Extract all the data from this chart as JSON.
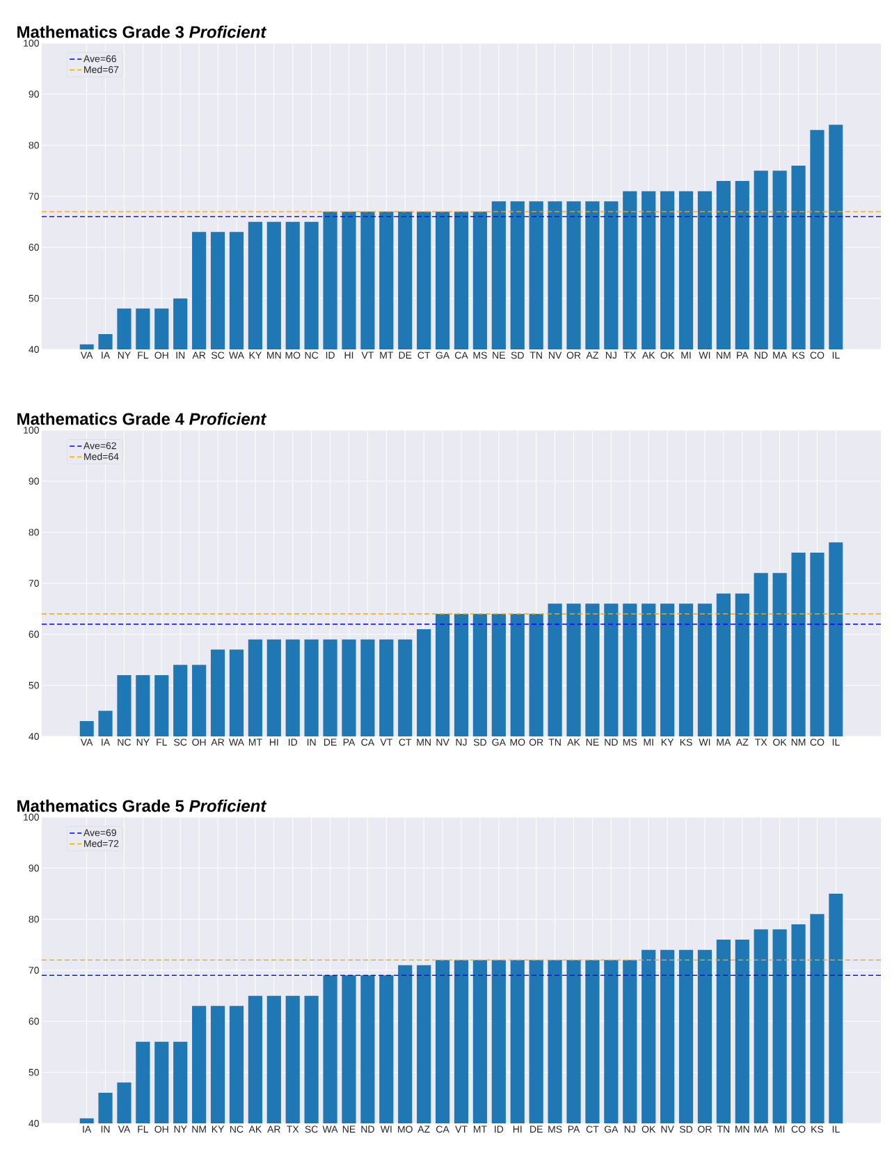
{
  "chart_data": [
    {
      "type": "bar",
      "title": "Mathematics Grade 3 *Proficient*",
      "color": "#1f77b4",
      "grid": true,
      "legend": "top left",
      "ylim": [
        40,
        100
      ],
      "yticks": [
        40,
        50,
        60,
        70,
        80,
        90,
        100
      ],
      "categories": [
        "VA",
        "IA",
        "NY",
        "FL",
        "OH",
        "IN",
        "AR",
        "SC",
        "WA",
        "KY",
        "MN",
        "MO",
        "NC",
        "ID",
        "HI",
        "VT",
        "MT",
        "DE",
        "CT",
        "GA",
        "CA",
        "MS",
        "NE",
        "SD",
        "TN",
        "NV",
        "OR",
        "AZ",
        "NJ",
        "TX",
        "AK",
        "OK",
        "MI",
        "WI",
        "NM",
        "PA",
        "ND",
        "MA",
        "KS",
        "CO",
        "IL"
      ],
      "values": [
        41,
        43,
        48,
        48,
        48,
        50,
        63,
        63,
        63,
        65,
        65,
        65,
        65,
        67,
        67,
        67,
        67,
        67,
        67,
        67,
        67,
        67,
        69,
        69,
        69,
        69,
        69,
        69,
        69,
        71,
        71,
        71,
        71,
        71,
        73,
        73,
        75,
        75,
        76,
        83,
        84
      ],
      "ref_lines": [
        {
          "axis": "y",
          "value": 66,
          "label": "Ave=66",
          "color": "#0000ff",
          "line_style": "dashed"
        },
        {
          "axis": "y",
          "value": 67,
          "label": "Med=67",
          "color": "#ffa500",
          "line_style": "dashed"
        }
      ]
    },
    {
      "type": "bar",
      "title": "Mathematics Grade 4 *Proficient*",
      "color": "#1f77b4",
      "grid": true,
      "legend": "top left",
      "ylim": [
        40,
        100
      ],
      "yticks": [
        40,
        50,
        60,
        70,
        80,
        90,
        100
      ],
      "categories": [
        "VA",
        "IA",
        "NC",
        "NY",
        "FL",
        "SC",
        "OH",
        "AR",
        "WA",
        "MT",
        "HI",
        "ID",
        "IN",
        "DE",
        "PA",
        "CA",
        "VT",
        "CT",
        "MN",
        "NV",
        "NJ",
        "SD",
        "GA",
        "MO",
        "OR",
        "TN",
        "AK",
        "NE",
        "ND",
        "MS",
        "MI",
        "KY",
        "KS",
        "WI",
        "MA",
        "AZ",
        "TX",
        "OK",
        "NM",
        "CO",
        "IL"
      ],
      "values": [
        43,
        45,
        52,
        52,
        52,
        54,
        54,
        57,
        57,
        59,
        59,
        59,
        59,
        59,
        59,
        59,
        59,
        59,
        61,
        64,
        64,
        64,
        64,
        64,
        64,
        66,
        66,
        66,
        66,
        66,
        66,
        66,
        66,
        66,
        68,
        68,
        72,
        72,
        76,
        76,
        78
      ],
      "ref_lines": [
        {
          "axis": "y",
          "value": 62,
          "label": "Ave=62",
          "color": "#0000ff",
          "line_style": "dashed"
        },
        {
          "axis": "y",
          "value": 64,
          "label": "Med=64",
          "color": "#ffa500",
          "line_style": "dashed"
        }
      ]
    },
    {
      "type": "bar",
      "title": "Mathematics Grade 5 *Proficient*",
      "color": "#1f77b4",
      "grid": true,
      "legend": "top left",
      "ylim": [
        40,
        100
      ],
      "yticks": [
        40,
        50,
        60,
        70,
        80,
        90,
        100
      ],
      "categories": [
        "IA",
        "IN",
        "VA",
        "FL",
        "OH",
        "NY",
        "NM",
        "KY",
        "NC",
        "AK",
        "AR",
        "TX",
        "SC",
        "WA",
        "NE",
        "ND",
        "WI",
        "MO",
        "AZ",
        "CA",
        "VT",
        "MT",
        "ID",
        "HI",
        "DE",
        "MS",
        "PA",
        "CT",
        "GA",
        "NJ",
        "OK",
        "NV",
        "SD",
        "OR",
        "TN",
        "MN",
        "MA",
        "MI",
        "CO",
        "KS",
        "IL"
      ],
      "values": [
        41,
        46,
        48,
        56,
        56,
        56,
        63,
        63,
        63,
        65,
        65,
        65,
        65,
        69,
        69,
        69,
        69,
        71,
        71,
        72,
        72,
        72,
        72,
        72,
        72,
        72,
        72,
        72,
        72,
        72,
        74,
        74,
        74,
        74,
        76,
        76,
        78,
        78,
        79,
        81,
        85
      ],
      "ref_lines": [
        {
          "axis": "y",
          "value": 69,
          "label": "Ave=69",
          "color": "#0000ff",
          "line_style": "dashed"
        },
        {
          "axis": "y",
          "value": 72,
          "label": "Med=72",
          "color": "#ffa500",
          "line_style": "dashed"
        }
      ]
    }
  ]
}
